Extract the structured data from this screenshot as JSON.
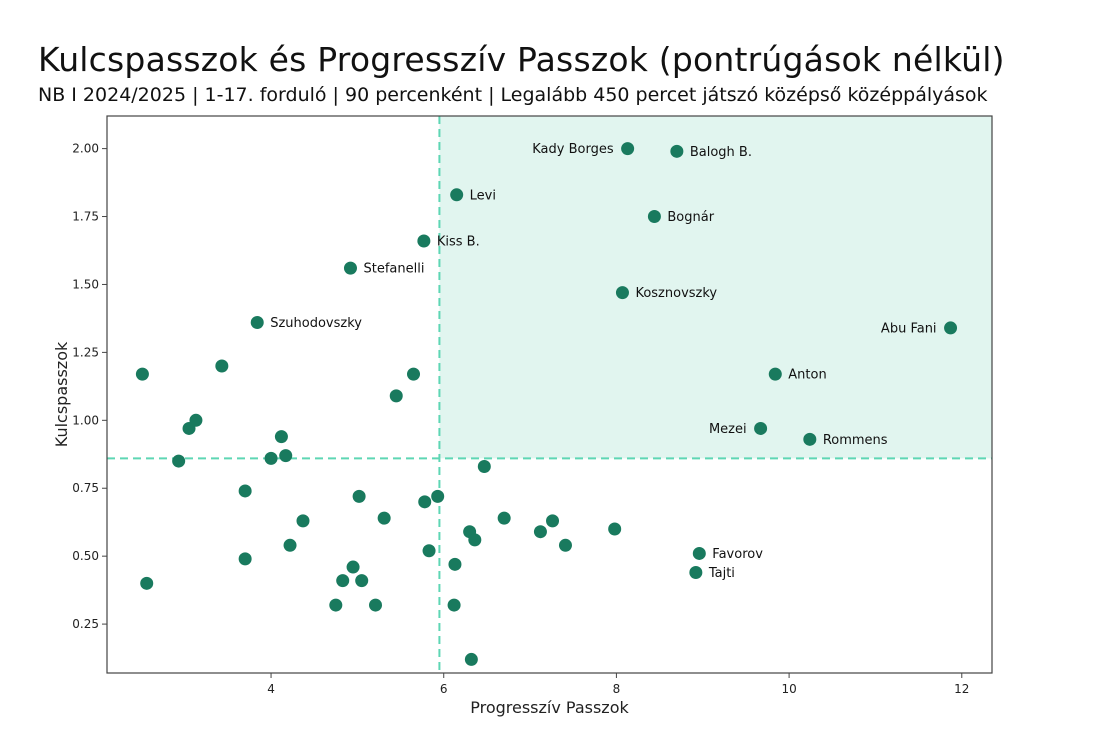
{
  "chart_data": {
    "type": "scatter",
    "title": "Kulcspasszok és Progresszív Passzok (pontrúgások nélkül)",
    "subtitle": "NB I 2024/2025 | 1-17. forduló | 90 percenként | Legalább 450 percet játszó középső középpályások",
    "xlabel": "Progresszív Passzok",
    "ylabel": "Kulcspasszok",
    "xlim": [
      2.1,
      12.35
    ],
    "ylim": [
      0.07,
      2.12
    ],
    "xticks": [
      4,
      6,
      8,
      10,
      12
    ],
    "yticks": [
      0.25,
      0.5,
      0.75,
      1.0,
      1.25,
      1.5,
      1.75,
      2.0
    ],
    "xtick_labels": [
      "4",
      "6",
      "8",
      "10",
      "12"
    ],
    "ytick_labels": [
      "0.25",
      "0.50",
      "0.75",
      "1.00",
      "1.25",
      "1.50",
      "1.75",
      "2.00"
    ],
    "grid": false,
    "threshold_x": 5.95,
    "threshold_y": 0.86,
    "colors": {
      "point": "#197a5e",
      "quadrant_fill": "#e1f5ef",
      "threshold_line": "#5ed6b4",
      "frame": "#444444"
    },
    "labeled_points": [
      {
        "label": "Kady Borges",
        "x": 8.13,
        "y": 2.0,
        "side": "left"
      },
      {
        "label": "Balogh B.",
        "x": 8.7,
        "y": 1.99,
        "side": "right"
      },
      {
        "label": "Levi",
        "x": 6.15,
        "y": 1.83,
        "side": "right"
      },
      {
        "label": "Bognár",
        "x": 8.44,
        "y": 1.75,
        "side": "right"
      },
      {
        "label": "Kiss B.",
        "x": 5.77,
        "y": 1.66,
        "side": "right"
      },
      {
        "label": "Stefanelli",
        "x": 4.92,
        "y": 1.56,
        "side": "right"
      },
      {
        "label": "Kosznovszky",
        "x": 8.07,
        "y": 1.47,
        "side": "right"
      },
      {
        "label": "Szuhodovszky",
        "x": 3.84,
        "y": 1.36,
        "side": "right"
      },
      {
        "label": "Abu Fani",
        "x": 11.87,
        "y": 1.34,
        "side": "left"
      },
      {
        "label": "Anton",
        "x": 9.84,
        "y": 1.17,
        "side": "right"
      },
      {
        "label": "Mezei",
        "x": 9.67,
        "y": 0.97,
        "side": "left"
      },
      {
        "label": "Rommens",
        "x": 10.24,
        "y": 0.93,
        "side": "right"
      },
      {
        "label": "Favorov",
        "x": 8.96,
        "y": 0.51,
        "side": "right"
      },
      {
        "label": "Tajti",
        "x": 8.92,
        "y": 0.44,
        "side": "right"
      }
    ],
    "points": [
      {
        "x": 2.51,
        "y": 1.17
      },
      {
        "x": 3.43,
        "y": 1.2
      },
      {
        "x": 3.05,
        "y": 0.97
      },
      {
        "x": 3.13,
        "y": 1.0
      },
      {
        "x": 2.93,
        "y": 0.85
      },
      {
        "x": 4.0,
        "y": 0.86
      },
      {
        "x": 4.12,
        "y": 0.94
      },
      {
        "x": 4.17,
        "y": 0.87
      },
      {
        "x": 3.7,
        "y": 0.74
      },
      {
        "x": 3.7,
        "y": 0.49
      },
      {
        "x": 2.56,
        "y": 0.4
      },
      {
        "x": 4.22,
        "y": 0.54
      },
      {
        "x": 4.37,
        "y": 0.63
      },
      {
        "x": 5.65,
        "y": 1.17
      },
      {
        "x": 5.45,
        "y": 1.09
      },
      {
        "x": 5.02,
        "y": 0.72
      },
      {
        "x": 5.31,
        "y": 0.64
      },
      {
        "x": 5.78,
        "y": 0.7
      },
      {
        "x": 5.93,
        "y": 0.72
      },
      {
        "x": 5.83,
        "y": 0.52
      },
      {
        "x": 4.95,
        "y": 0.46
      },
      {
        "x": 4.83,
        "y": 0.41
      },
      {
        "x": 5.05,
        "y": 0.41
      },
      {
        "x": 4.75,
        "y": 0.32
      },
      {
        "x": 5.21,
        "y": 0.32
      },
      {
        "x": 6.12,
        "y": 0.32
      },
      {
        "x": 6.13,
        "y": 0.47
      },
      {
        "x": 6.3,
        "y": 0.59
      },
      {
        "x": 6.36,
        "y": 0.56
      },
      {
        "x": 6.47,
        "y": 0.83
      },
      {
        "x": 6.7,
        "y": 0.64
      },
      {
        "x": 7.12,
        "y": 0.59
      },
      {
        "x": 7.26,
        "y": 0.63
      },
      {
        "x": 7.41,
        "y": 0.54
      },
      {
        "x": 7.98,
        "y": 0.6
      },
      {
        "x": 6.32,
        "y": 0.12
      }
    ]
  }
}
